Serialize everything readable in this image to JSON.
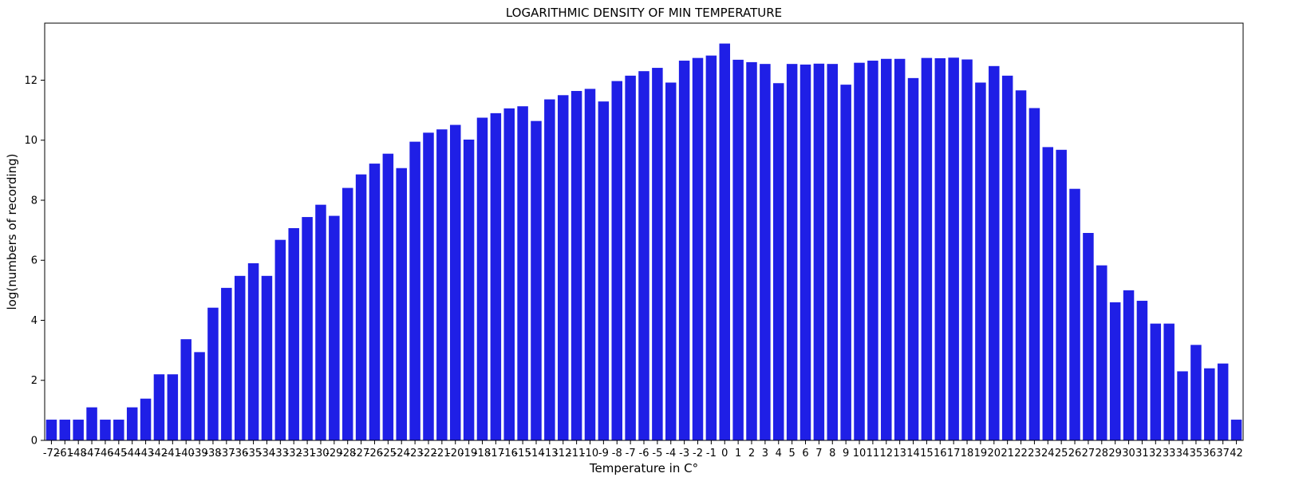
{
  "chart_data": {
    "type": "bar",
    "title": "LOGARITHMIC DENSITY OF MIN TEMPERATURE",
    "xlabel": "Temperature in C°",
    "ylabel": "log(numbers of recording)",
    "ylim": [
      0,
      13.9
    ],
    "yticks": [
      0,
      2,
      4,
      6,
      8,
      10,
      12
    ],
    "grid": false,
    "bar_color": "#1f1fe6",
    "categories": [
      "-72",
      "-61",
      "-48",
      "-47",
      "-46",
      "-45",
      "-44",
      "-43",
      "-42",
      "-41",
      "-40",
      "-39",
      "-38",
      "-37",
      "-36",
      "-35",
      "-34",
      "-33",
      "-32",
      "-31",
      "-30",
      "-29",
      "-28",
      "-27",
      "-26",
      "-25",
      "-24",
      "-23",
      "-22",
      "-21",
      "-20",
      "-19",
      "-18",
      "-17",
      "-16",
      "-15",
      "-14",
      "-13",
      "-12",
      "-11",
      "-10",
      "-9",
      "-8",
      "-7",
      "-6",
      "-5",
      "-4",
      "-3",
      "-2",
      "-1",
      "0",
      "1",
      "2",
      "3",
      "4",
      "5",
      "6",
      "7",
      "8",
      "9",
      "10",
      "11",
      "12",
      "13",
      "14",
      "15",
      "16",
      "17",
      "18",
      "19",
      "20",
      "21",
      "22",
      "23",
      "24",
      "25",
      "26",
      "27",
      "28",
      "29",
      "30",
      "31",
      "32",
      "33",
      "34",
      "35",
      "36",
      "37",
      "42"
    ],
    "values": [
      0.69,
      0.69,
      0.69,
      1.1,
      0.69,
      0.69,
      1.1,
      1.39,
      2.2,
      2.2,
      3.37,
      2.94,
      4.42,
      5.08,
      5.48,
      5.9,
      5.48,
      6.68,
      7.07,
      7.44,
      7.85,
      7.48,
      8.41,
      8.86,
      9.22,
      9.55,
      9.07,
      9.95,
      10.25,
      10.36,
      10.51,
      10.02,
      10.75,
      10.9,
      11.06,
      11.13,
      10.64,
      11.36,
      11.5,
      11.64,
      11.71,
      11.29,
      11.97,
      12.15,
      12.3,
      12.41,
      11.92,
      12.65,
      12.74,
      12.82,
      13.22,
      12.68,
      12.6,
      12.54,
      11.9,
      12.54,
      12.52,
      12.55,
      12.54,
      11.85,
      12.58,
      12.65,
      12.71,
      12.71,
      12.07,
      12.74,
      12.73,
      12.75,
      12.69,
      11.92,
      12.47,
      12.15,
      11.66,
      11.07,
      9.77,
      9.68,
      8.38,
      6.91,
      5.83,
      4.6,
      5.0,
      4.65,
      3.89,
      3.89,
      2.3,
      3.18,
      2.4,
      2.56,
      0.69
    ]
  }
}
